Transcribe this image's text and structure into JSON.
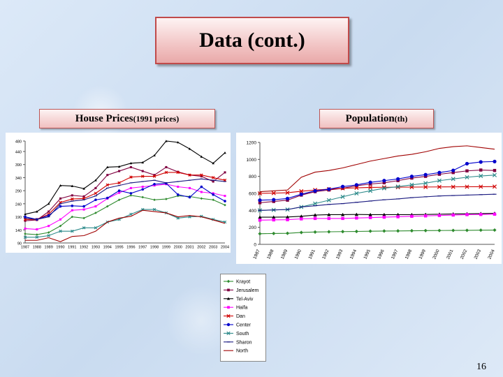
{
  "slide": {
    "title": "Data (cont.)",
    "page_number": "16"
  },
  "labels": {
    "house_prices_main": "House Prices ",
    "house_prices_sub": "(1991 prices)",
    "population_main": "Population ",
    "population_sub": "(th)"
  },
  "chart_data": [
    {
      "type": "line",
      "categories": [
        "1987",
        "1988",
        "1989",
        "1990",
        "1991",
        "1992",
        "1993",
        "1994",
        "1995",
        "1996",
        "1997",
        "1998",
        "1999",
        "2000",
        "2001",
        "2002",
        "2003",
        "2004"
      ],
      "ylim": [
        90,
        480
      ],
      "yticks": [
        90,
        140,
        190,
        240,
        290,
        340,
        390,
        440,
        480
      ],
      "grid": false,
      "series": [
        {
          "name": "Krayot",
          "color": "#2e8b2e",
          "marker": "diamond",
          "values": [
            125,
            122,
            130,
            155,
            190,
            185,
            205,
            230,
            255,
            272,
            265,
            255,
            258,
            270,
            268,
            260,
            255,
            235
          ]
        },
        {
          "name": "Jerusalem",
          "color": "#800040",
          "marker": "square",
          "values": [
            175,
            178,
            210,
            260,
            272,
            268,
            300,
            350,
            365,
            380,
            365,
            350,
            380,
            362,
            350,
            345,
            325,
            360
          ]
        },
        {
          "name": "Tel-Aviv",
          "color": "#000000",
          "marker": "triangle",
          "values": [
            200,
            210,
            240,
            310,
            308,
            298,
            330,
            380,
            382,
            395,
            398,
            425,
            480,
            475,
            450,
            420,
            395,
            435
          ]
        },
        {
          "name": "Haifa",
          "color": "#ff00ff",
          "marker": "square",
          "values": [
            145,
            142,
            155,
            180,
            215,
            218,
            230,
            260,
            282,
            300,
            305,
            310,
            315,
            305,
            300,
            285,
            280,
            270
          ]
        },
        {
          "name": "Dan",
          "color": "#d00000",
          "marker": "x",
          "values": [
            180,
            180,
            200,
            245,
            258,
            260,
            280,
            312,
            320,
            342,
            345,
            345,
            360,
            360,
            350,
            350,
            340,
            330
          ]
        },
        {
          "name": "Center",
          "color": "#0000cc",
          "marker": "circle",
          "values": [
            190,
            180,
            195,
            230,
            232,
            230,
            255,
            262,
            290,
            280,
            295,
            315,
            318,
            275,
            265,
            305,
            275,
            250
          ]
        },
        {
          "name": "South",
          "color": "#2e8b8b",
          "marker": "x",
          "values": [
            112,
            112,
            118,
            135,
            135,
            148,
            148,
            170,
            180,
            200,
            218,
            218,
            205,
            185,
            190,
            192,
            180,
            170
          ]
        },
        {
          "name": "Sharon",
          "color": "#1a1a80",
          "marker": "dash",
          "values": [
            185,
            180,
            190,
            240,
            250,
            255,
            270,
            300,
            310,
            320,
            325,
            330,
            320,
            325,
            330,
            335,
            330,
            325
          ]
        },
        {
          "name": "North",
          "color": "#a00000",
          "marker": "none",
          "values": [
            100,
            100,
            110,
            95,
            115,
            118,
            135,
            170,
            185,
            192,
            215,
            210,
            205,
            190,
            195,
            190,
            178,
            165
          ]
        }
      ]
    },
    {
      "type": "line",
      "categories": [
        "1987",
        "1988",
        "1989",
        "1990",
        "1991",
        "1992",
        "1993",
        "1994",
        "1995",
        "1996",
        "1997",
        "1998",
        "1999",
        "2000",
        "2001",
        "2002",
        "2003",
        "2004"
      ],
      "ylim": [
        0,
        1200
      ],
      "yticks": [
        0,
        200,
        400,
        600,
        800,
        1000,
        1200
      ],
      "grid": false,
      "series": [
        {
          "name": "Krayot",
          "values": [
            125,
            128,
            130,
            140,
            145,
            148,
            150,
            152,
            155,
            157,
            158,
            160,
            162,
            163,
            164,
            165,
            167,
            168
          ]
        },
        {
          "name": "Jerusalem",
          "values": [
            490,
            505,
            520,
            580,
            620,
            640,
            660,
            690,
            710,
            725,
            750,
            780,
            800,
            825,
            845,
            865,
            875,
            870
          ]
        },
        {
          "name": "Tel-Aviv",
          "values": [
            320,
            320,
            322,
            330,
            345,
            350,
            350,
            352,
            350,
            350,
            350,
            350,
            352,
            355,
            358,
            360,
            362,
            365
          ]
        },
        {
          "name": "Haifa",
          "values": [
            285,
            288,
            290,
            300,
            305,
            305,
            305,
            310,
            315,
            320,
            325,
            330,
            335,
            340,
            345,
            350,
            352,
            355
          ]
        },
        {
          "name": "Dan",
          "values": [
            600,
            603,
            608,
            625,
            640,
            650,
            660,
            665,
            670,
            672,
            673,
            674,
            675,
            676,
            677,
            678,
            679,
            680
          ]
        },
        {
          "name": "Center",
          "values": [
            520,
            525,
            540,
            590,
            630,
            650,
            680,
            700,
            730,
            750,
            770,
            800,
            820,
            845,
            870,
            950,
            970,
            975
          ]
        },
        {
          "name": "South",
          "values": [
            400,
            405,
            410,
            440,
            480,
            520,
            560,
            600,
            630,
            660,
            680,
            700,
            720,
            750,
            770,
            790,
            805,
            815
          ]
        },
        {
          "name": "Sharon",
          "values": [
            400,
            405,
            410,
            440,
            455,
            470,
            480,
            495,
            510,
            525,
            535,
            550,
            560,
            570,
            575,
            580,
            585,
            590
          ]
        },
        {
          "name": "North",
          "values": [
            620,
            630,
            640,
            790,
            850,
            870,
            900,
            940,
            980,
            1010,
            1040,
            1060,
            1090,
            1130,
            1150,
            1160,
            1140,
            1120
          ]
        }
      ]
    }
  ]
}
